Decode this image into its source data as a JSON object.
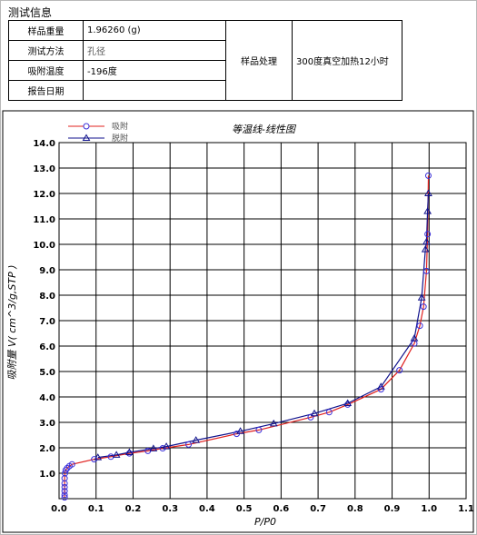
{
  "section_title": "测试信息",
  "info": {
    "weight_label": "样品重量",
    "weight_value": "1.96260 (g)",
    "method_label": "测试方法",
    "method_value": "孔径",
    "temp_label": "吸附温度",
    "temp_value": "-196度",
    "date_label": "报告日期",
    "date_value": "",
    "treatment_label": "样品处理",
    "treatment_value": "300度真空加热12小时"
  },
  "colors": {
    "adsorption": "#e0201e",
    "desorption": "#10128c",
    "marker": "#3a2fd9"
  },
  "chart_data": {
    "type": "line",
    "title": "等温线-线性图",
    "xlabel": "P/P0",
    "ylabel": "吸附量 V( cm^3/g,STP )",
    "xlim": [
      0,
      1.1
    ],
    "ylim": [
      0,
      14
    ],
    "xticks": [
      "0.0",
      "0.1",
      "0.2",
      "0.3",
      "0.4",
      "0.5",
      "0.6",
      "0.7",
      "0.8",
      "0.9",
      "1.0",
      "1.1"
    ],
    "yticks": [
      "1.0",
      "2.0",
      "3.0",
      "4.0",
      "5.0",
      "6.0",
      "7.0",
      "8.0",
      "9.0",
      "10.0",
      "11.0",
      "12.0",
      "13.0",
      "14.0"
    ],
    "grid": true,
    "legend_position": "top-left",
    "series": [
      {
        "name": "吸附",
        "marker": "circle",
        "x": [
          0.015,
          0.015,
          0.015,
          0.015,
          0.015,
          0.015,
          0.016,
          0.018,
          0.022,
          0.028,
          0.035,
          0.095,
          0.14,
          0.19,
          0.24,
          0.28,
          0.35,
          0.48,
          0.54,
          0.68,
          0.73,
          0.78,
          0.87,
          0.92,
          0.96,
          0.975,
          0.985,
          0.993,
          0.996,
          0.998
        ],
        "y": [
          0.05,
          0.15,
          0.3,
          0.45,
          0.6,
          0.8,
          1.0,
          1.12,
          1.2,
          1.28,
          1.35,
          1.55,
          1.65,
          1.78,
          1.88,
          1.98,
          2.13,
          2.55,
          2.7,
          3.2,
          3.4,
          3.7,
          4.3,
          5.05,
          6.1,
          6.8,
          7.55,
          8.95,
          10.4,
          12.7
        ]
      },
      {
        "name": "脱附",
        "marker": "triangle",
        "x": [
          0.998,
          0.996,
          0.993,
          0.99,
          0.98,
          0.96,
          0.87,
          0.78,
          0.69,
          0.58,
          0.49,
          0.37,
          0.29,
          0.255,
          0.19,
          0.155,
          0.105
        ],
        "y": [
          12.0,
          11.3,
          10.1,
          9.8,
          7.9,
          6.3,
          4.4,
          3.75,
          3.35,
          2.95,
          2.65,
          2.3,
          2.05,
          1.97,
          1.82,
          1.72,
          1.62
        ]
      }
    ]
  }
}
